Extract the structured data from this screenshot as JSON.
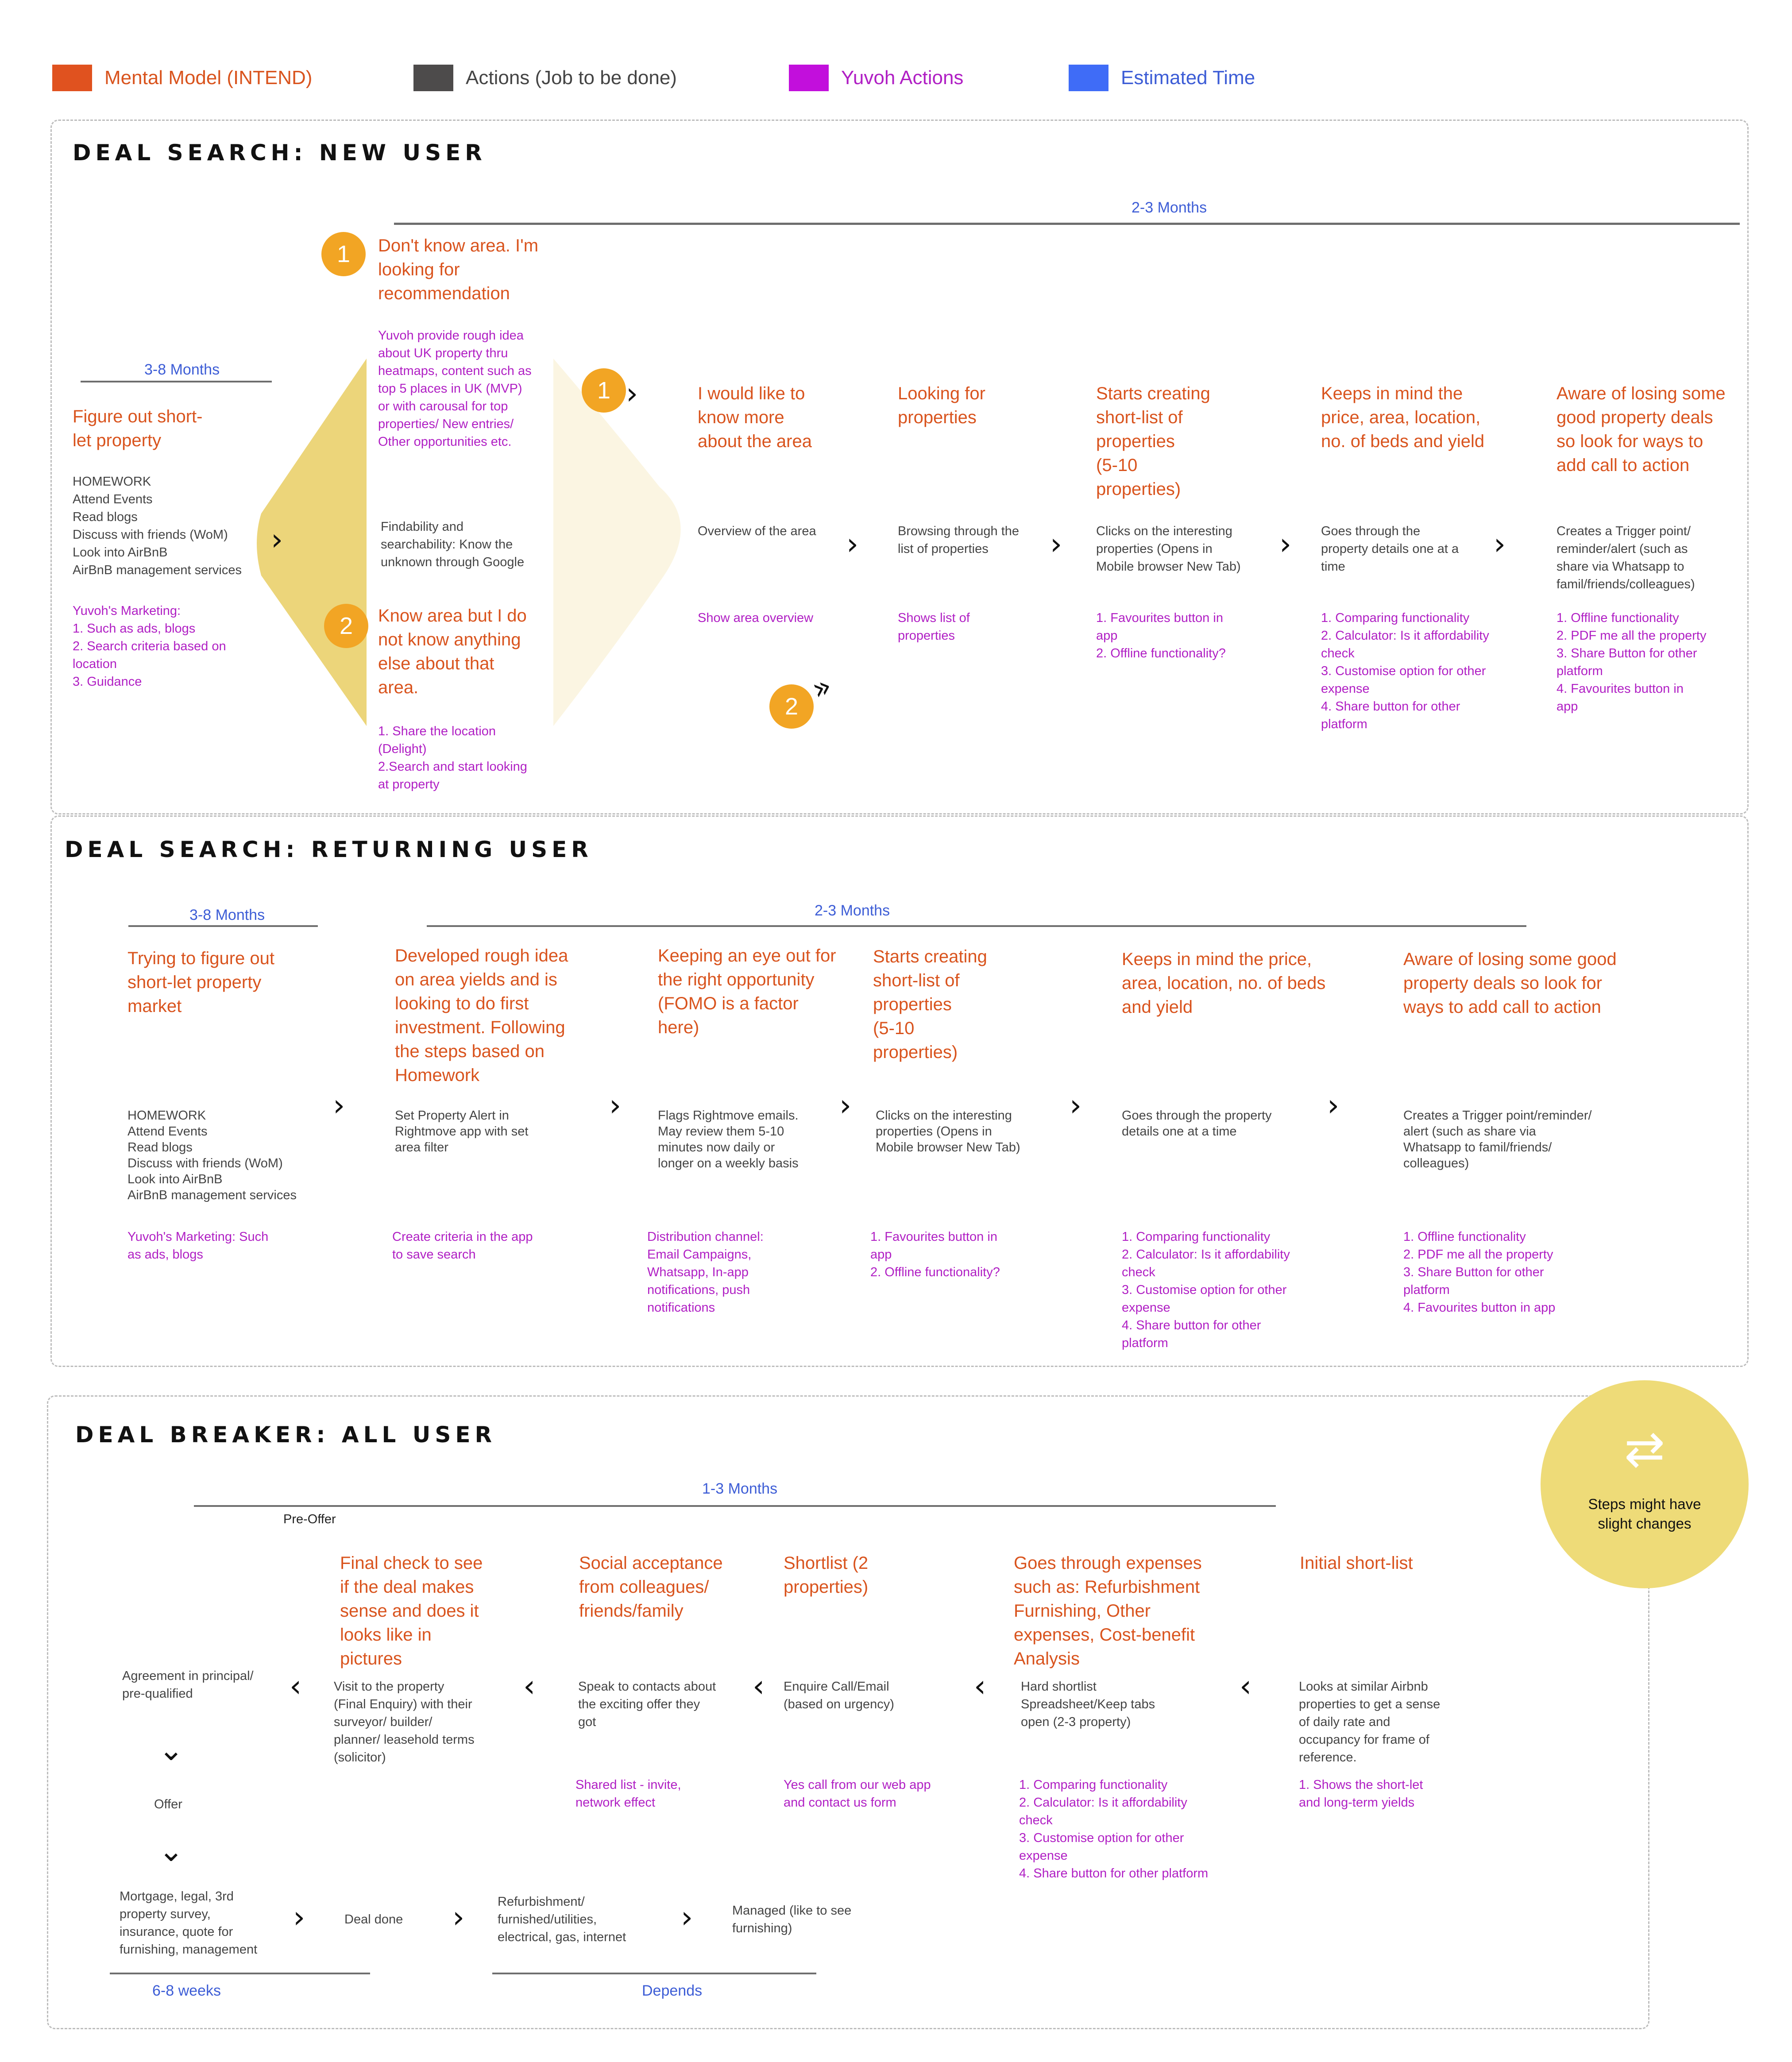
{
  "legend": [
    {
      "label": "Mental Model (INTEND)",
      "color": "#e0521f",
      "text_color": "#d9541e"
    },
    {
      "label": "Actions (Job to be done)",
      "color": "#4d4b4b",
      "text_color": "#444444"
    },
    {
      "label": "Yuvoh Actions",
      "color": "#c20fdc",
      "text_color": "#b01fc4"
    },
    {
      "label": "Estimated Time",
      "color": "#3f6cf7",
      "text_color": "#3d5dd6"
    }
  ],
  "colors": {
    "orange_badge": "#f2a524",
    "diamond_dark": "#ecd57a",
    "diamond_light": "#fbf5e2",
    "circle_yellow": "#eedb78"
  },
  "new_user": {
    "title": "DEAL SEARCH: NEW USER",
    "time_main": "2-3 Months",
    "time_pre": "3-8 Months",
    "pre": {
      "mm": "Figure out short-\nlet property",
      "act": "HOMEWORK\nAttend Events\nRead blogs\nDiscuss with friends (WoM)\nLook into AirBnB\nAirBnB management services",
      "yv": "Yuvoh's Marketing:\n1. Such as ads, blogs\n2. Search criteria based on\nlocation\n3. Guidance"
    },
    "branch1": {
      "badge": "1",
      "mm": "Don't know area. I'm\nlooking for\nrecommendation",
      "yv": "Yuvoh provide rough idea\nabout UK property thru\nheatmaps, content such as\ntop 5 places in UK (MVP)\nor with carousal for top\nproperties/ New entries/\nOther opportunities etc."
    },
    "findability": "Findability and\nsearchability: Know the\nunknown through Google",
    "branch2": {
      "badge": "2",
      "mm": "Know area but I do\nnot know anything\nelse about that\narea.",
      "yv": "1. Share the location\n(Delight)\n2.Search and start looking\nat property"
    },
    "entry_badge_1": "1",
    "entry_badge_2": "2",
    "steps": [
      {
        "mm": "I would like to\nknow more\nabout the area",
        "act": "Overview of the area",
        "yv": "Show area overview"
      },
      {
        "mm": "Looking for\nproperties",
        "act": "Browsing through the\nlist of properties",
        "yv": "Shows list of\nproperties"
      },
      {
        "mm": "Starts creating\nshort-list of\nproperties\n(5-10\nproperties)",
        "act": "Clicks on the interesting\nproperties (Opens in\nMobile browser New Tab)",
        "yv": "1. Favourites button in\napp\n2. Offline functionality?"
      },
      {
        "mm": "Keeps in mind the\nprice, area, location,\nno. of beds and yield",
        "act": "Goes through the\nproperty details one at a\ntime",
        "yv": "1. Comparing functionality\n2. Calculator: Is it affordability\ncheck\n3. Customise option for other\nexpense\n4. Share button for other\nplatform"
      },
      {
        "mm": "Aware of losing some\ngood property deals\nso look for ways to\nadd call to action",
        "act": "Creates a Trigger point/\nreminder/alert (such as\nshare via Whatsapp to\nfamil/friends/colleagues)",
        "yv": "1. Offline functionality\n2. PDF me all the property\n3. Share Button for other\nplatform\n4. Favourites button in\napp"
      }
    ]
  },
  "returning_user": {
    "title": "DEAL SEARCH: RETURNING USER",
    "time_pre": "3-8 Months",
    "time_main": "2-3 Months",
    "steps": [
      {
        "mm": "Trying to figure out\nshort-let property\nmarket",
        "act": "HOMEWORK\nAttend Events\nRead blogs\nDiscuss with friends (WoM)\nLook into AirBnB\nAirBnB management services",
        "yv": "Yuvoh's Marketing: Such\nas ads, blogs"
      },
      {
        "mm": "Developed rough idea\non area yields and is\nlooking to do first\ninvestment. Following\nthe steps based on\nHomework",
        "act": "Set Property Alert in\nRightmove app with set\narea filter",
        "yv": "Create criteria in the app\nto save search"
      },
      {
        "mm": "Keeping an eye out for\nthe right opportunity\n(FOMO is a factor\nhere)",
        "act": "Flags Rightmove emails.\nMay review them 5-10\nminutes now daily or\nlonger on a weekly basis",
        "yv": "Distribution channel:\nEmail Campaigns,\nWhatsapp, In-app\nnotifications, push\nnotifications"
      },
      {
        "mm": "Starts creating\nshort-list of\nproperties\n(5-10\nproperties)",
        "act": "Clicks on the interesting\nproperties (Opens in\nMobile browser New Tab)",
        "yv": "1. Favourites button in\napp\n2. Offline functionality?"
      },
      {
        "mm": "Keeps in mind the price,\narea, location, no. of beds\nand yield",
        "act": "Goes through the property\ndetails one at a time",
        "yv": "1. Comparing functionality\n2. Calculator: Is it affordability\ncheck\n3. Customise option for other\nexpense\n4. Share button for other\nplatform"
      },
      {
        "mm": "Aware of losing some good\nproperty deals so look for\nways to add call to action",
        "act": "Creates a Trigger point/reminder/\nalert (such as share via\nWhatsapp to famil/friends/\ncolleagues)",
        "yv": "1. Offline functionality\n2. PDF me all the property\n3. Share Button for other\nplatform\n4. Favourites button in app"
      }
    ]
  },
  "deal_breaker": {
    "title": "DEAL BREAKER: ALL USER",
    "time_main": "1-3 Months",
    "pre_offer": "Pre-Offer",
    "note": "Steps might have\nslight changes",
    "steps": [
      {
        "mm": "Final check to see\nif the deal makes\nsense and does it\nlooks like in\npictures",
        "act": "Visit to the property\n(Final Enquiry) with their\nsurveyor/ builder/\nplanner/ leasehold terms\n(solicitor)",
        "yv": ""
      },
      {
        "mm": "Social acceptance\nfrom colleagues/\nfriends/family",
        "act": "Speak to contacts about\nthe exciting offer they\ngot",
        "yv": "Shared list - invite,\nnetwork effect"
      },
      {
        "mm": "Shortlist (2\nproperties)",
        "act": "Enquire Call/Email\n(based on urgency)",
        "yv": "Yes call from our web app\nand contact us form"
      },
      {
        "mm": "Goes through expenses\nsuch as: Refurbishment\nFurnishing, Other\nexpenses, Cost-benefit\nAnalysis",
        "act": "Hard shortlist\nSpreadsheet/Keep tabs\nopen (2-3 property)",
        "yv": "1. Comparing functionality\n2. Calculator: Is it affordability\ncheck\n3. Customise option for other\nexpense\n4. Share button for other platform"
      },
      {
        "mm": "Initial short-list",
        "act": "Looks at similar Airbnb\nproperties to get a sense\nof daily rate and\noccupancy for frame of\nreference.",
        "yv": "1. Shows the short-let\nand long-term yields"
      }
    ],
    "agreement": "Agreement in principal/\npre-qualified",
    "offer": "Offer",
    "bottom": [
      "Mortgage, legal, 3rd\nproperty survey,\ninsurance, quote for\nfurnishing, management",
      "Deal done",
      "Refurbishment/\nfurnished/utilities,\nelectrical, gas, internet",
      "Managed (like to see\nfurnishing)"
    ],
    "time_bottom_left": "6-8 weeks",
    "time_bottom_right": "Depends"
  },
  "glyphs": {
    "chev_right": "›",
    "chev_left": "‹",
    "chev_down": "⌄",
    "double_chev": "»",
    "swap": "⇄"
  }
}
